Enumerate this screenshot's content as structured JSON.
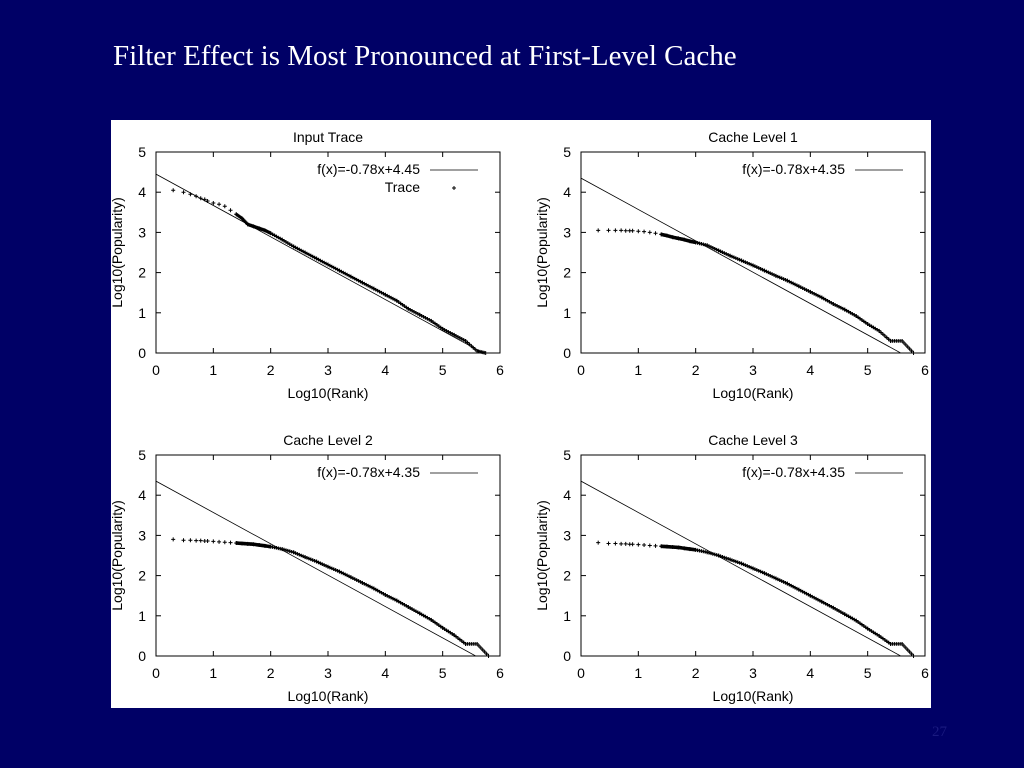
{
  "slide": {
    "title": "Filter Effect is Most Pronounced at First-Level Cache",
    "page_number": "27"
  },
  "colors": {
    "background": "#000066",
    "panel": "#ffffff",
    "ink": "#000000",
    "title_text": "#ffffff"
  },
  "chart_data": [
    {
      "type": "scatter",
      "title": "Input Trace",
      "xlabel": "Log10(Rank)",
      "ylabel": "Log10(Popularity)",
      "xlim": [
        0,
        6
      ],
      "ylim": [
        0,
        5
      ],
      "xticks": [
        "0",
        "1",
        "2",
        "3",
        "4",
        "5",
        "6"
      ],
      "yticks": [
        "0",
        "1",
        "2",
        "3",
        "4",
        "5"
      ],
      "legend": "top-right",
      "fit_line": {
        "label": "f(x)=-0.78x+4.45",
        "slope": -0.78,
        "intercept": 4.45
      },
      "series": [
        {
          "name": "Trace",
          "x": [
            0.3,
            0.48,
            0.6,
            0.7,
            0.78,
            0.85,
            0.9,
            1.0,
            1.1,
            1.2,
            1.3,
            1.4,
            1.5,
            1.6,
            1.7,
            1.8,
            1.9,
            2.0,
            2.2,
            2.4,
            2.6,
            2.8,
            3.0,
            3.2,
            3.4,
            3.6,
            3.8,
            4.0,
            4.2,
            4.4,
            4.6,
            4.8,
            5.0,
            5.2,
            5.4,
            5.6,
            5.75
          ],
          "y": [
            4.05,
            4.0,
            3.95,
            3.9,
            3.85,
            3.82,
            3.78,
            3.73,
            3.7,
            3.65,
            3.55,
            3.45,
            3.35,
            3.2,
            3.15,
            3.1,
            3.05,
            2.98,
            2.82,
            2.65,
            2.5,
            2.35,
            2.2,
            2.05,
            1.9,
            1.75,
            1.6,
            1.45,
            1.3,
            1.1,
            0.95,
            0.8,
            0.6,
            0.45,
            0.3,
            0.05,
            0.0
          ]
        }
      ]
    },
    {
      "type": "scatter",
      "title": "Cache Level 1",
      "xlabel": "Log10(Rank)",
      "ylabel": "Log10(Popularity)",
      "xlim": [
        0,
        6
      ],
      "ylim": [
        0,
        5
      ],
      "xticks": [
        "0",
        "1",
        "2",
        "3",
        "4",
        "5",
        "6"
      ],
      "yticks": [
        "0",
        "1",
        "2",
        "3",
        "4",
        "5"
      ],
      "legend": "top-right",
      "fit_line": {
        "label": "f(x)=-0.78x+4.35",
        "slope": -0.78,
        "intercept": 4.35
      },
      "series": [
        {
          "x": [
            0.3,
            0.48,
            0.6,
            0.7,
            0.78,
            0.85,
            0.9,
            1.0,
            1.1,
            1.2,
            1.3,
            1.4,
            1.5,
            1.6,
            1.7,
            1.8,
            1.9,
            2.0,
            2.2,
            2.4,
            2.6,
            2.8,
            3.0,
            3.2,
            3.4,
            3.6,
            3.8,
            4.0,
            4.2,
            4.4,
            4.6,
            4.8,
            5.0,
            5.2,
            5.4,
            5.6,
            5.8
          ],
          "y": [
            3.05,
            3.05,
            3.05,
            3.05,
            3.04,
            3.04,
            3.04,
            3.03,
            3.02,
            3.0,
            2.98,
            2.95,
            2.92,
            2.88,
            2.85,
            2.82,
            2.78,
            2.75,
            2.68,
            2.55,
            2.42,
            2.3,
            2.18,
            2.05,
            1.92,
            1.8,
            1.66,
            1.52,
            1.38,
            1.22,
            1.08,
            0.92,
            0.72,
            0.55,
            0.3,
            0.3,
            0.0
          ]
        }
      ]
    },
    {
      "type": "scatter",
      "title": "Cache Level 2",
      "xlabel": "Log10(Rank)",
      "ylabel": "Log10(Popularity)",
      "xlim": [
        0,
        6
      ],
      "ylim": [
        0,
        5
      ],
      "xticks": [
        "0",
        "1",
        "2",
        "3",
        "4",
        "5",
        "6"
      ],
      "yticks": [
        "0",
        "1",
        "2",
        "3",
        "4",
        "5"
      ],
      "legend": "top-right",
      "fit_line": {
        "label": "f(x)=-0.78x+4.35",
        "slope": -0.78,
        "intercept": 4.35
      },
      "series": [
        {
          "x": [
            0.3,
            0.48,
            0.6,
            0.7,
            0.78,
            0.85,
            0.9,
            1.0,
            1.1,
            1.2,
            1.3,
            1.4,
            1.5,
            1.6,
            1.7,
            1.8,
            1.9,
            2.0,
            2.2,
            2.4,
            2.6,
            2.8,
            3.0,
            3.2,
            3.4,
            3.6,
            3.8,
            4.0,
            4.2,
            4.4,
            4.6,
            4.8,
            5.0,
            5.2,
            5.4,
            5.6,
            5.8
          ],
          "y": [
            2.9,
            2.88,
            2.88,
            2.87,
            2.87,
            2.86,
            2.86,
            2.85,
            2.84,
            2.83,
            2.82,
            2.81,
            2.8,
            2.79,
            2.78,
            2.76,
            2.74,
            2.72,
            2.66,
            2.58,
            2.46,
            2.35,
            2.22,
            2.1,
            1.96,
            1.82,
            1.68,
            1.52,
            1.38,
            1.22,
            1.06,
            0.9,
            0.7,
            0.52,
            0.3,
            0.3,
            0.0
          ]
        }
      ]
    },
    {
      "type": "scatter",
      "title": "Cache Level 3",
      "xlabel": "Log10(Rank)",
      "ylabel": "Log10(Popularity)",
      "xlim": [
        0,
        6
      ],
      "ylim": [
        0,
        5
      ],
      "xticks": [
        "0",
        "1",
        "2",
        "3",
        "4",
        "5",
        "6"
      ],
      "yticks": [
        "0",
        "1",
        "2",
        "3",
        "4",
        "5"
      ],
      "legend": "top-right",
      "fit_line": {
        "label": "f(x)=-0.78x+4.35",
        "slope": -0.78,
        "intercept": 4.35
      },
      "series": [
        {
          "x": [
            0.3,
            0.48,
            0.6,
            0.7,
            0.78,
            0.85,
            0.9,
            1.0,
            1.1,
            1.2,
            1.3,
            1.4,
            1.5,
            1.6,
            1.7,
            1.8,
            1.9,
            2.0,
            2.2,
            2.4,
            2.6,
            2.8,
            3.0,
            3.2,
            3.4,
            3.6,
            3.8,
            4.0,
            4.2,
            4.4,
            4.6,
            4.8,
            5.0,
            5.2,
            5.4,
            5.6,
            5.8
          ],
          "y": [
            2.82,
            2.8,
            2.8,
            2.79,
            2.79,
            2.78,
            2.78,
            2.77,
            2.76,
            2.75,
            2.74,
            2.73,
            2.72,
            2.71,
            2.7,
            2.68,
            2.66,
            2.64,
            2.58,
            2.5,
            2.4,
            2.3,
            2.18,
            2.06,
            1.93,
            1.8,
            1.65,
            1.5,
            1.35,
            1.2,
            1.04,
            0.88,
            0.68,
            0.5,
            0.3,
            0.3,
            0.0
          ]
        }
      ]
    }
  ]
}
